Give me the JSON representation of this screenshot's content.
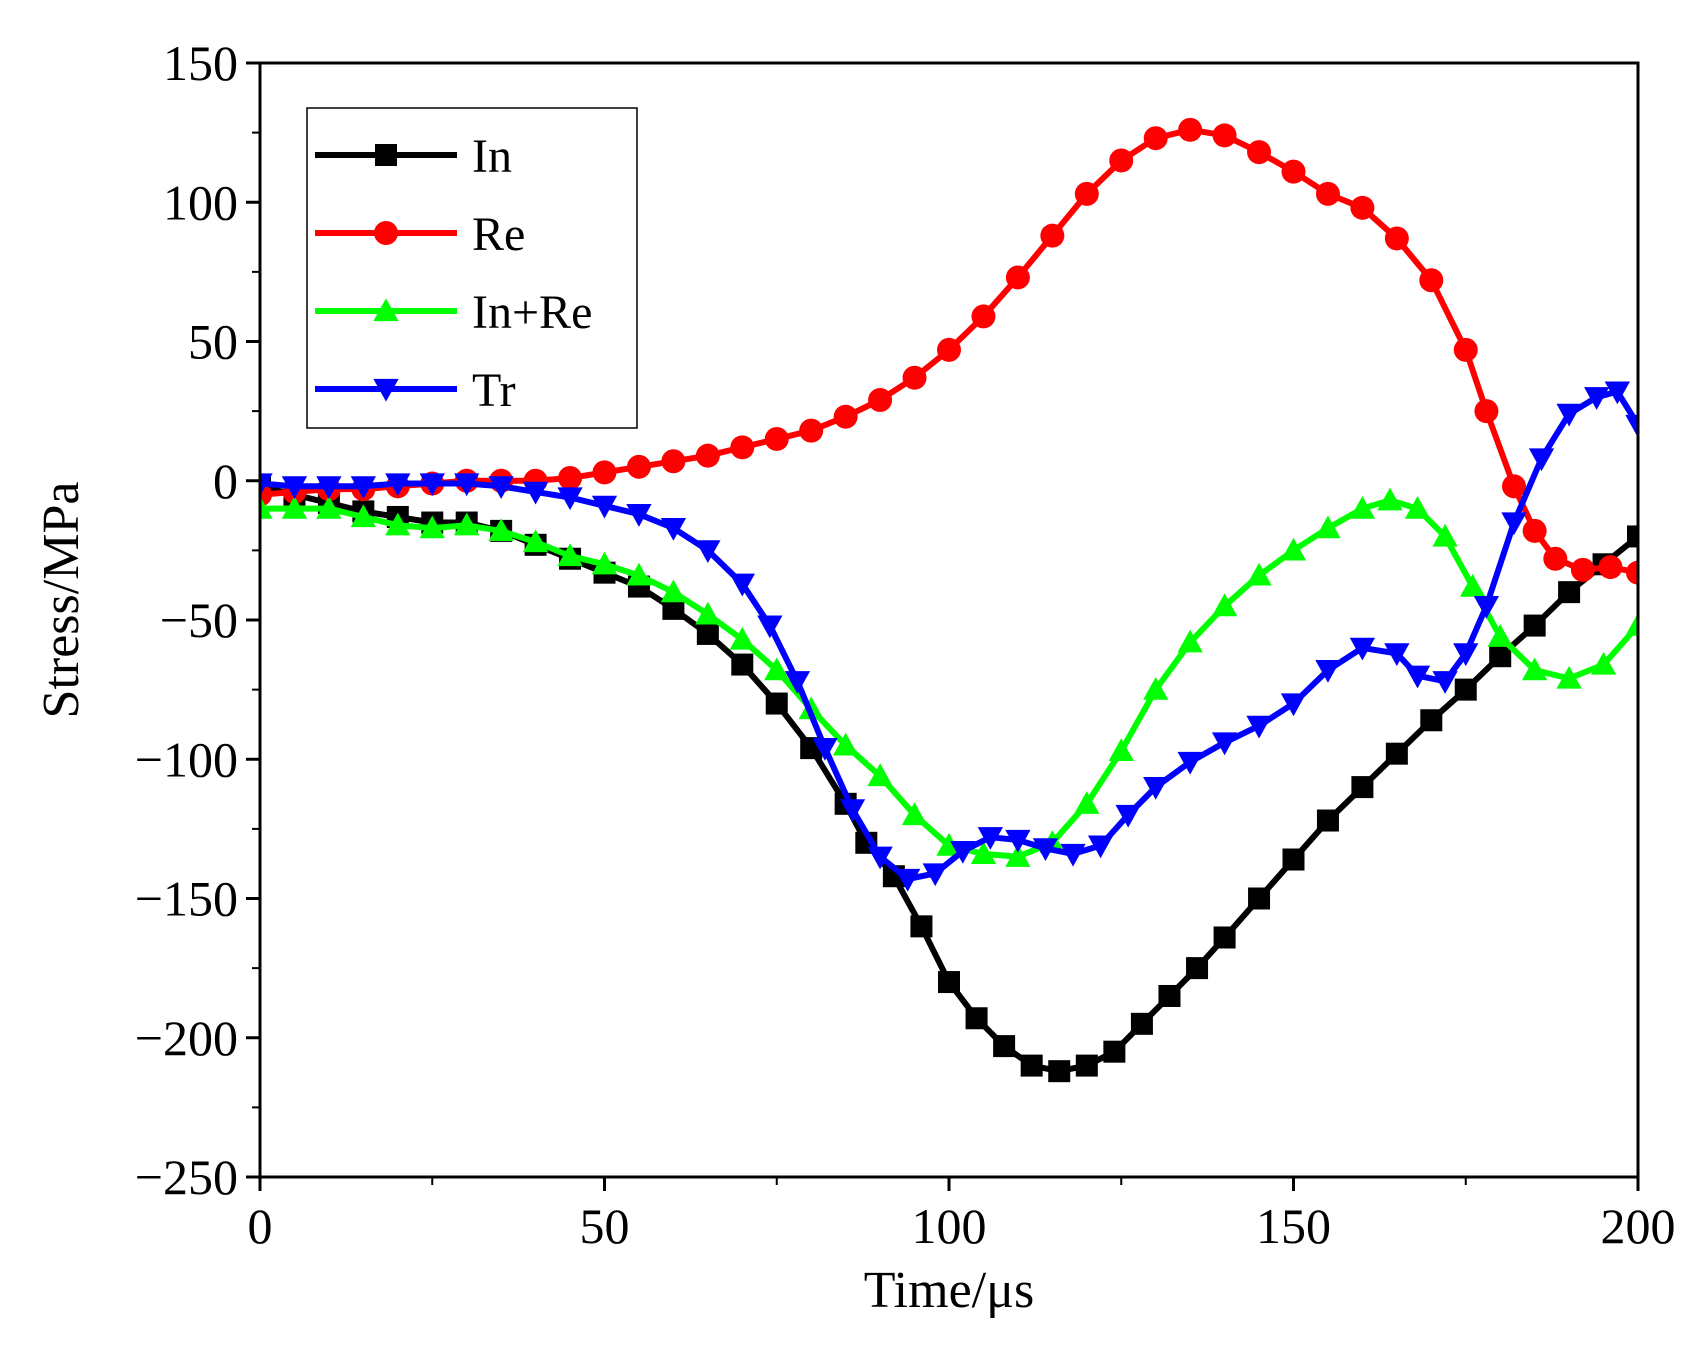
{
  "chart_data": {
    "type": "line",
    "xlabel": "Time/μs",
    "ylabel": "Stress/MPa",
    "xlim": [
      0,
      200
    ],
    "ylim": [
      -250,
      150
    ],
    "x_ticks": [
      "0",
      "50",
      "100",
      "150",
      "200"
    ],
    "y_ticks": [
      "150",
      "100",
      "50",
      "0",
      "−50",
      "−100",
      "−150",
      "−200",
      "−250"
    ],
    "legend_position": "top-left",
    "grid": false,
    "series": [
      {
        "name": "In",
        "color": "#000000",
        "marker": "square",
        "points": [
          [
            0,
            -2
          ],
          [
            5,
            -5
          ],
          [
            10,
            -8
          ],
          [
            15,
            -11
          ],
          [
            20,
            -13
          ],
          [
            25,
            -15
          ],
          [
            30,
            -15
          ],
          [
            35,
            -18
          ],
          [
            40,
            -23
          ],
          [
            45,
            -28
          ],
          [
            50,
            -33
          ],
          [
            55,
            -38
          ],
          [
            60,
            -46
          ],
          [
            65,
            -55
          ],
          [
            70,
            -66
          ],
          [
            75,
            -80
          ],
          [
            80,
            -96
          ],
          [
            85,
            -116
          ],
          [
            88,
            -130
          ],
          [
            92,
            -142
          ],
          [
            96,
            -160
          ],
          [
            100,
            -180
          ],
          [
            104,
            -193
          ],
          [
            108,
            -203
          ],
          [
            112,
            -210
          ],
          [
            116,
            -212
          ],
          [
            120,
            -210
          ],
          [
            124,
            -205
          ],
          [
            128,
            -195
          ],
          [
            132,
            -185
          ],
          [
            136,
            -175
          ],
          [
            140,
            -164
          ],
          [
            145,
            -150
          ],
          [
            150,
            -136
          ],
          [
            155,
            -122
          ],
          [
            160,
            -110
          ],
          [
            165,
            -98
          ],
          [
            170,
            -86
          ],
          [
            175,
            -75
          ],
          [
            180,
            -63
          ],
          [
            185,
            -52
          ],
          [
            190,
            -40
          ],
          [
            195,
            -30
          ],
          [
            200,
            -20
          ]
        ]
      },
      {
        "name": "Re",
        "color": "#ff0000",
        "marker": "circle",
        "points": [
          [
            0,
            -5
          ],
          [
            5,
            -4
          ],
          [
            10,
            -3
          ],
          [
            15,
            -3
          ],
          [
            20,
            -2
          ],
          [
            25,
            -1
          ],
          [
            30,
            0
          ],
          [
            35,
            0
          ],
          [
            40,
            0
          ],
          [
            45,
            1
          ],
          [
            50,
            3
          ],
          [
            55,
            5
          ],
          [
            60,
            7
          ],
          [
            65,
            9
          ],
          [
            70,
            12
          ],
          [
            75,
            15
          ],
          [
            80,
            18
          ],
          [
            85,
            23
          ],
          [
            90,
            29
          ],
          [
            95,
            37
          ],
          [
            100,
            47
          ],
          [
            105,
            59
          ],
          [
            110,
            73
          ],
          [
            115,
            88
          ],
          [
            120,
            103
          ],
          [
            125,
            115
          ],
          [
            130,
            123
          ],
          [
            135,
            126
          ],
          [
            140,
            124
          ],
          [
            145,
            118
          ],
          [
            150,
            111
          ],
          [
            155,
            103
          ],
          [
            160,
            98
          ],
          [
            165,
            87
          ],
          [
            170,
            72
          ],
          [
            175,
            47
          ],
          [
            178,
            25
          ],
          [
            182,
            -2
          ],
          [
            185,
            -18
          ],
          [
            188,
            -28
          ],
          [
            192,
            -32
          ],
          [
            196,
            -31
          ],
          [
            200,
            -33
          ]
        ]
      },
      {
        "name": "In+Re",
        "color": "#00ff00",
        "marker": "triangle-up",
        "points": [
          [
            0,
            -10
          ],
          [
            5,
            -10
          ],
          [
            10,
            -10
          ],
          [
            15,
            -13
          ],
          [
            20,
            -16
          ],
          [
            25,
            -17
          ],
          [
            30,
            -16
          ],
          [
            35,
            -18
          ],
          [
            40,
            -22
          ],
          [
            45,
            -27
          ],
          [
            50,
            -30
          ],
          [
            55,
            -34
          ],
          [
            60,
            -40
          ],
          [
            65,
            -48
          ],
          [
            70,
            -57
          ],
          [
            75,
            -68
          ],
          [
            80,
            -82
          ],
          [
            85,
            -95
          ],
          [
            90,
            -106
          ],
          [
            95,
            -120
          ],
          [
            100,
            -131
          ],
          [
            105,
            -134
          ],
          [
            110,
            -135
          ],
          [
            115,
            -130
          ],
          [
            120,
            -116
          ],
          [
            125,
            -97
          ],
          [
            130,
            -75
          ],
          [
            135,
            -58
          ],
          [
            140,
            -45
          ],
          [
            145,
            -34
          ],
          [
            150,
            -25
          ],
          [
            155,
            -17
          ],
          [
            160,
            -10
          ],
          [
            164,
            -7
          ],
          [
            168,
            -10
          ],
          [
            172,
            -20
          ],
          [
            176,
            -38
          ],
          [
            180,
            -56
          ],
          [
            185,
            -68
          ],
          [
            190,
            -71
          ],
          [
            195,
            -66
          ],
          [
            200,
            -52
          ]
        ]
      },
      {
        "name": "Tr",
        "color": "#0000ff",
        "marker": "triangle-down",
        "points": [
          [
            0,
            -1
          ],
          [
            5,
            -2
          ],
          [
            10,
            -2
          ],
          [
            15,
            -2
          ],
          [
            20,
            -1
          ],
          [
            25,
            -1
          ],
          [
            30,
            -1
          ],
          [
            35,
            -2
          ],
          [
            40,
            -4
          ],
          [
            45,
            -6
          ],
          [
            50,
            -9
          ],
          [
            55,
            -12
          ],
          [
            60,
            -17
          ],
          [
            65,
            -25
          ],
          [
            70,
            -37
          ],
          [
            74,
            -52
          ],
          [
            78,
            -72
          ],
          [
            82,
            -96
          ],
          [
            86,
            -118
          ],
          [
            90,
            -135
          ],
          [
            94,
            -143
          ],
          [
            98,
            -141
          ],
          [
            102,
            -133
          ],
          [
            106,
            -128
          ],
          [
            110,
            -129
          ],
          [
            114,
            -132
          ],
          [
            118,
            -134
          ],
          [
            122,
            -131
          ],
          [
            126,
            -120
          ],
          [
            130,
            -110
          ],
          [
            135,
            -101
          ],
          [
            140,
            -94
          ],
          [
            145,
            -88
          ],
          [
            150,
            -80
          ],
          [
            155,
            -68
          ],
          [
            160,
            -60
          ],
          [
            165,
            -62
          ],
          [
            168,
            -70
          ],
          [
            172,
            -72
          ],
          [
            175,
            -62
          ],
          [
            178,
            -45
          ],
          [
            182,
            -15
          ],
          [
            186,
            8
          ],
          [
            190,
            24
          ],
          [
            194,
            30
          ],
          [
            197,
            32
          ],
          [
            200,
            20
          ]
        ]
      }
    ]
  }
}
